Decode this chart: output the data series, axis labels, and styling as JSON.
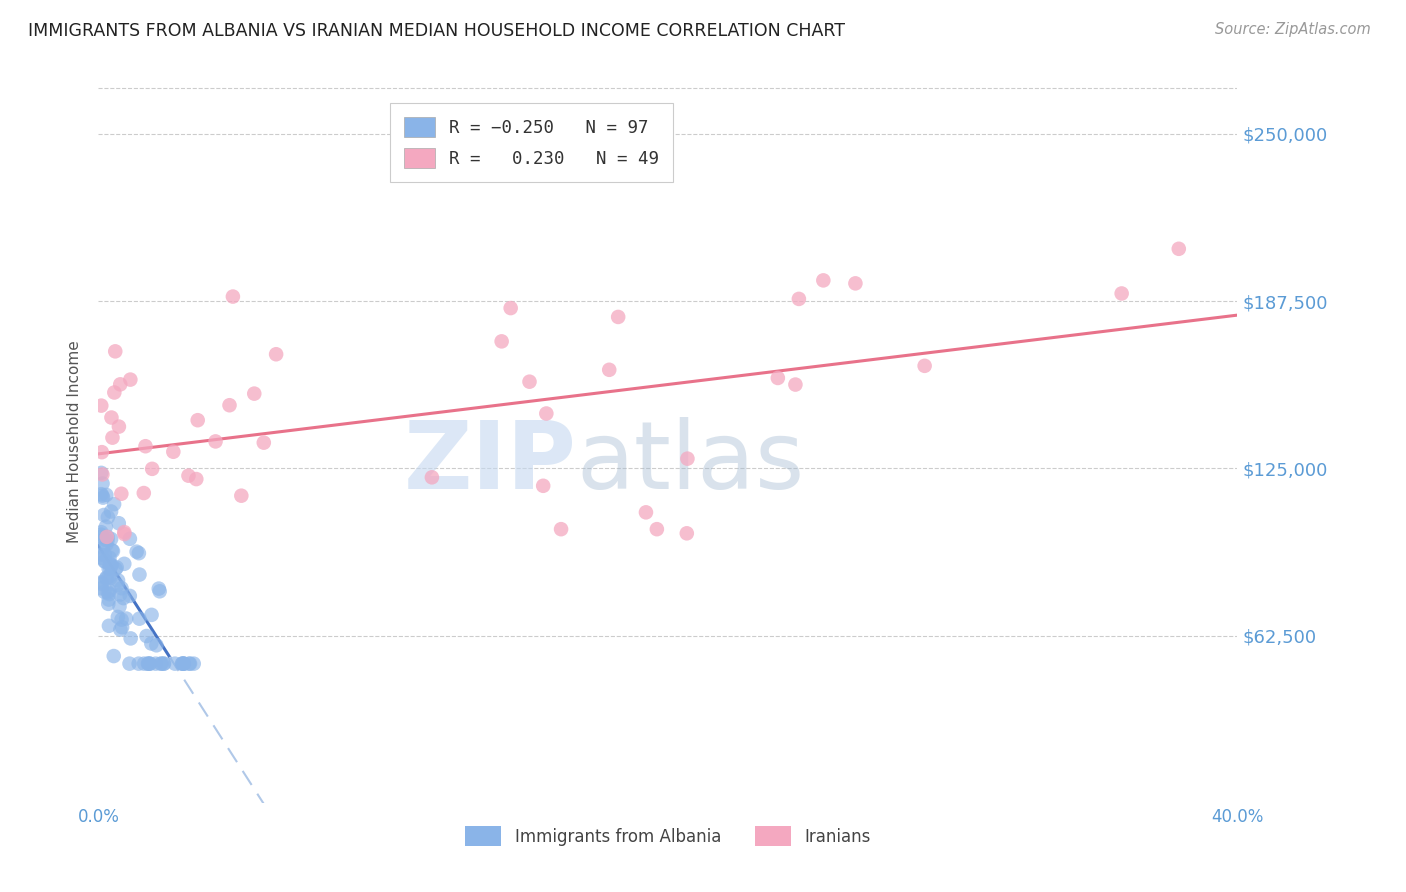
{
  "title": "IMMIGRANTS FROM ALBANIA VS IRANIAN MEDIAN HOUSEHOLD INCOME CORRELATION CHART",
  "source": "Source: ZipAtlas.com",
  "ylabel": "Median Household Income",
  "ytick_labels": [
    "$62,500",
    "$125,000",
    "$187,500",
    "$250,000"
  ],
  "ytick_values": [
    62500,
    125000,
    187500,
    250000
  ],
  "ymin": 0,
  "ymax": 270000,
  "xmin": 0.0,
  "xmax": 0.4,
  "legend_label1": "Immigrants from Albania",
  "legend_label2": "Iranians",
  "blue_color": "#8ab4e8",
  "pink_color": "#f4a8c0",
  "blue_line_color": "#4472c4",
  "pink_line_color": "#e8728a",
  "blue_dashed_color": "#b0c8e8",
  "watermark_zip": "ZIP",
  "watermark_atlas": "atlas",
  "background_color": "#ffffff",
  "title_color": "#222222",
  "axis_label_color": "#5b9bd5",
  "grid_color": "#cccccc",
  "iran_r": 0.23,
  "iran_intercept": 130000,
  "iran_slope": 90000,
  "alb_r": -0.25,
  "alb_intercept": 97000,
  "alb_slope": -2200000
}
